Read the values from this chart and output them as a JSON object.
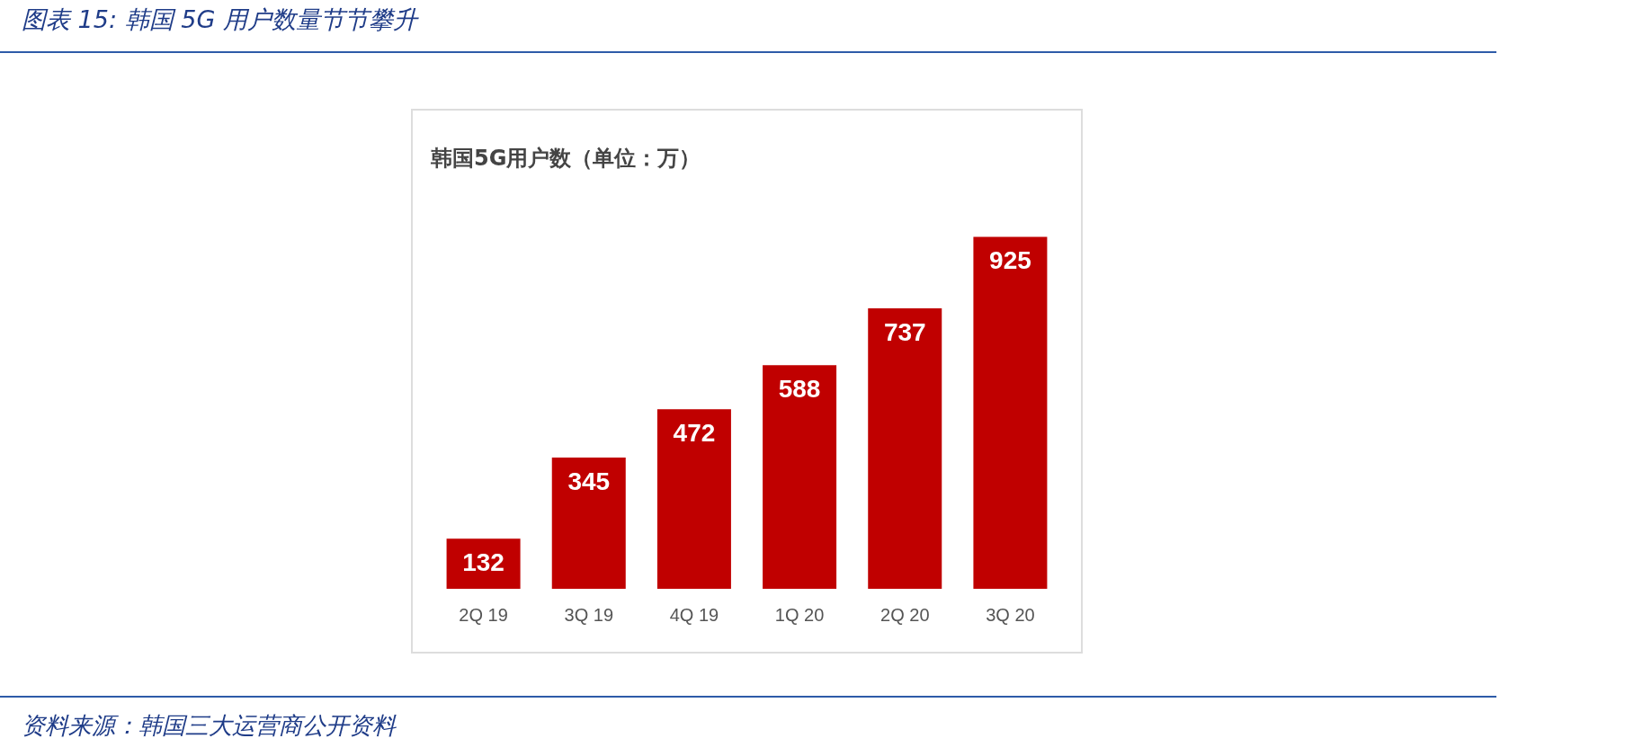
{
  "chart_data": {
    "type": "bar",
    "title": "韩国5G用户数（单位：万）",
    "categories": [
      "2Q 19",
      "3Q 19",
      "4Q 19",
      "1Q 20",
      "2Q 20",
      "3Q 20"
    ],
    "values": [
      132,
      345,
      472,
      588,
      737,
      925
    ],
    "color": "#c00000",
    "data_labels": true,
    "grid": false,
    "legend": false,
    "annotations": [
      "图表 15:  韩国 5G 用户数量节节攀升",
      "资料来源：韩国三大运营商公开资料"
    ]
  }
}
